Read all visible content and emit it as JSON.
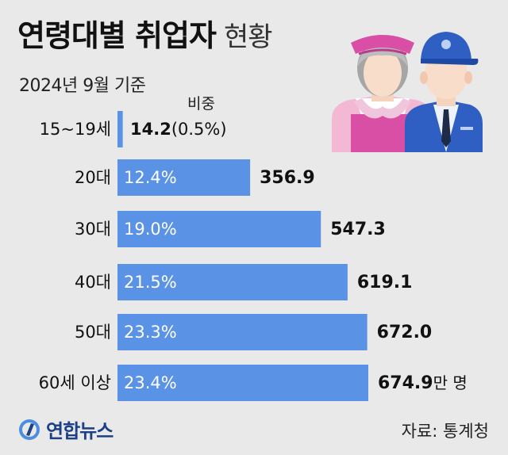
{
  "title": {
    "strong": "연령대별 취업자",
    "light": "현황"
  },
  "subtitle": "2024년 9월 기준",
  "share_header": "비중",
  "unit_label": "만 명",
  "source": "자료: 통계청",
  "logo_text": "연합뉴스",
  "colors": {
    "bar": "#5a93e6",
    "background": "#e9e9e9"
  },
  "chart_data": {
    "type": "bar",
    "orientation": "horizontal",
    "categories": [
      "15~19세",
      "20대",
      "30대",
      "40대",
      "50대",
      "60세 이상"
    ],
    "values": [
      14.2,
      356.9,
      547.3,
      619.1,
      672.0,
      674.9
    ],
    "value_labels": [
      "14.2",
      "356.9",
      "547.3",
      "619.1",
      "672.0",
      "674.9"
    ],
    "shares": [
      "(0.5%)",
      "12.4%",
      "19.0%",
      "21.5%",
      "23.3%",
      "23.4%"
    ],
    "title": "연령대별 취업자 현황",
    "xlabel": "",
    "ylabel": ""
  }
}
